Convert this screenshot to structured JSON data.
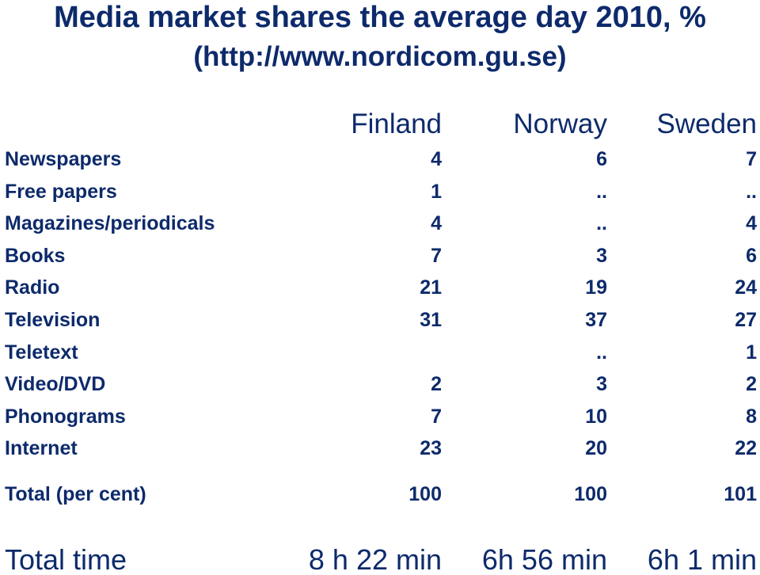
{
  "title": "Media market shares the average day 2010, %",
  "subtitle": "(http://www.nordicom.gu.se)",
  "columns": [
    "Finland",
    "Norway",
    "Sweden"
  ],
  "rows": [
    {
      "label": "Newspapers",
      "values": [
        "4",
        "6",
        "7"
      ]
    },
    {
      "label": "Free papers",
      "values": [
        "1",
        "..",
        ".."
      ]
    },
    {
      "label": "Magazines/periodicals",
      "values": [
        "4",
        "..",
        "4"
      ]
    },
    {
      "label": "Books",
      "values": [
        "7",
        "3",
        "6"
      ]
    },
    {
      "label": "Radio",
      "values": [
        "21",
        "19",
        "24"
      ]
    },
    {
      "label": "Television",
      "values": [
        "31",
        "37",
        "27"
      ]
    },
    {
      "label": "Teletext",
      "values": [
        "",
        "..",
        "1"
      ]
    },
    {
      "label": "Video/DVD",
      "values": [
        "2",
        "3",
        "2"
      ]
    },
    {
      "label": "Phonograms",
      "values": [
        "7",
        "10",
        "8"
      ]
    },
    {
      "label": "Internet",
      "values": [
        "23",
        "20",
        "22"
      ]
    }
  ],
  "total": {
    "label": "Total (per cent)",
    "values": [
      "100",
      "100",
      "101"
    ]
  },
  "total_time": {
    "label": "Total time",
    "values": [
      "8 h 22 min",
      "6h 56 min",
      "6h 1 min"
    ]
  },
  "colors": {
    "text": "#0d2a6b",
    "background": "#ffffff"
  }
}
